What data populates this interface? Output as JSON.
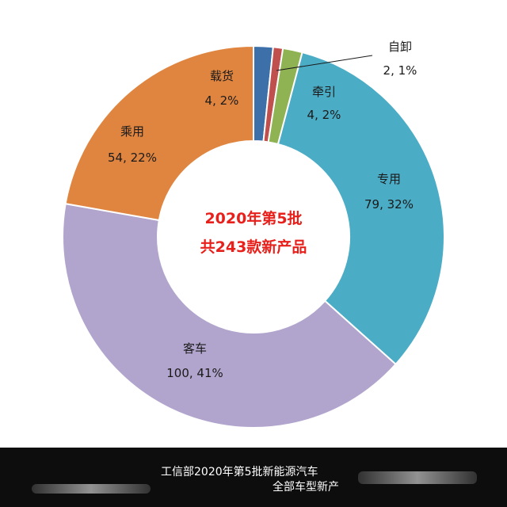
{
  "chart_data": {
    "type": "pie",
    "donut": true,
    "center_text": [
      "2020年第5批",
      "共243款新产品"
    ],
    "slices": [
      {
        "name": "载货",
        "count": 4,
        "percent_label": "2%",
        "value": 4,
        "color": "#3d6fa8"
      },
      {
        "name": "自卸",
        "count": 2,
        "percent_label": "1%",
        "value": 2,
        "color": "#c0504d"
      },
      {
        "name": "牵引",
        "count": 4,
        "percent_label": "2%",
        "value": 4,
        "color": "#8fb352"
      },
      {
        "name": "专用",
        "count": 79,
        "percent_label": "32%",
        "value": 79,
        "color": "#4bacc6"
      },
      {
        "name": "客车",
        "count": 100,
        "percent_label": "41%",
        "value": 100,
        "color": "#b1a5cd"
      },
      {
        "name": "乘用",
        "count": 54,
        "percent_label": "22%",
        "value": 54,
        "color": "#e0853f"
      }
    ],
    "labels": [
      {
        "name": "载货",
        "value_text": "4, 2%"
      },
      {
        "name": "自卸",
        "value_text": "2, 1%"
      },
      {
        "name": "牵引",
        "value_text": "4, 2%"
      },
      {
        "name": "专用",
        "value_text": "79, 32%"
      },
      {
        "name": "客车",
        "value_text": "100, 41%"
      },
      {
        "name": "乘用",
        "value_text": "54, 22%"
      }
    ]
  },
  "caption": {
    "line1": "工信部2020年第5批新能源汽车",
    "line2": "全部车型新产"
  }
}
